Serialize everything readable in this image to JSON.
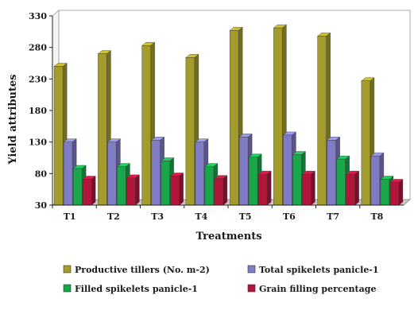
{
  "chart_data": {
    "type": "bar",
    "title": "",
    "xlabel": "Treatments",
    "ylabel": "Yield attributes",
    "ylim": [
      30,
      330
    ],
    "yticks": [
      30,
      80,
      130,
      180,
      230,
      280,
      330
    ],
    "grid": false,
    "legend_position": "bottom",
    "categories": [
      "T1",
      "T2",
      "T3",
      "T4",
      "T5",
      "T6",
      "T7",
      "T8"
    ],
    "series": [
      {
        "name": "Productive tillers (No. m-2)",
        "color": "#a39b2c",
        "values": [
          250,
          270,
          283,
          264,
          307,
          311,
          298,
          227
        ]
      },
      {
        "name": "Total spikelets panicle-1",
        "color": "#7f7cc4",
        "values": [
          130,
          130,
          133,
          130,
          138,
          141,
          133,
          108
        ]
      },
      {
        "name": "Filled spikelets panicle-1",
        "color": "#1aa64a",
        "values": [
          88,
          91,
          100,
          91,
          106,
          110,
          103,
          71
        ]
      },
      {
        "name": "Grain filling percentage",
        "color": "#b0163a",
        "values": [
          71,
          73,
          76,
          72,
          79,
          79,
          79,
          66
        ]
      }
    ]
  }
}
